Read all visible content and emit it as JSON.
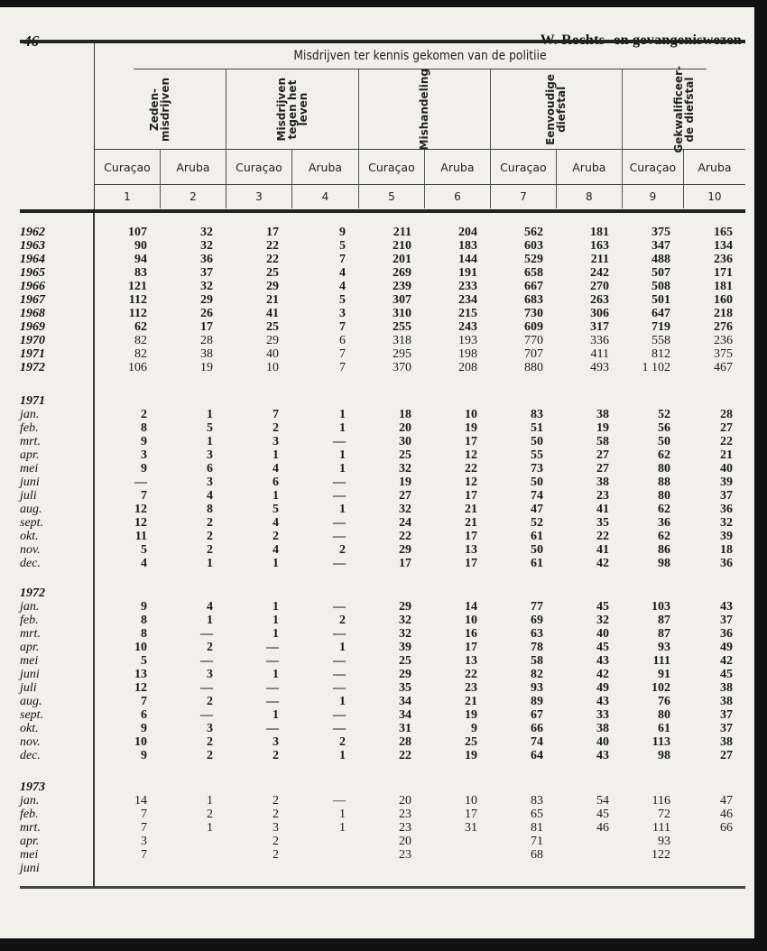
{
  "page": {
    "number": "46",
    "section_title": "W. Rechts- en gevangeniswezen"
  },
  "table": {
    "title": "Misdrijven ter kennis gekomen van de politiie",
    "groups": [
      "Zeden-\nmisdrijven",
      "Misdrijven\ntegen het\nleven",
      "Mishandeling",
      "Eenvoudige\ndiefstal",
      "Gekwalificeer-\nde diefstal"
    ],
    "subcolumns": [
      "Curaçao",
      "Aruba",
      "Curaçao",
      "Aruba",
      "Curaçao",
      "Aruba",
      "Curaçao",
      "Aruba",
      "Curaçao",
      "Aruba"
    ],
    "column_numbers": [
      "1",
      "2",
      "3",
      "4",
      "5",
      "6",
      "7",
      "8",
      "9",
      "10"
    ],
    "sections": [
      {
        "label": "",
        "rows": [
          {
            "label": "1962",
            "values": [
              "107",
              "32",
              "17",
              "9",
              "211",
              "204",
              "562",
              "181",
              "375",
              "165"
            ]
          },
          {
            "label": "1963",
            "values": [
              "90",
              "32",
              "22",
              "5",
              "210",
              "183",
              "603",
              "163",
              "347",
              "134"
            ]
          },
          {
            "label": "1964",
            "values": [
              "94",
              "36",
              "22",
              "7",
              "201",
              "144",
              "529",
              "211",
              "488",
              "236"
            ]
          },
          {
            "label": "1965",
            "values": [
              "83",
              "37",
              "25",
              "4",
              "269",
              "191",
              "658",
              "242",
              "507",
              "171"
            ]
          },
          {
            "label": "1966",
            "values": [
              "121",
              "32",
              "29",
              "4",
              "239",
              "233",
              "667",
              "270",
              "508",
              "181"
            ]
          },
          {
            "label": "1967",
            "values": [
              "112",
              "29",
              "21",
              "5",
              "307",
              "234",
              "683",
              "263",
              "501",
              "160"
            ]
          },
          {
            "label": "1968",
            "values": [
              "112",
              "26",
              "41",
              "3",
              "310",
              "215",
              "730",
              "306",
              "647",
              "218"
            ]
          },
          {
            "label": "1969",
            "values": [
              "62",
              "17",
              "25",
              "7",
              "255",
              "243",
              "609",
              "317",
              "719",
              "276"
            ]
          },
          {
            "label": "1970",
            "values": [
              "82",
              "28",
              "29",
              "6",
              "318",
              "193",
              "770",
              "336",
              "558",
              "236"
            ]
          },
          {
            "label": "1971",
            "values": [
              "82",
              "38",
              "40",
              "7",
              "295",
              "198",
              "707",
              "411",
              "812",
              "375"
            ]
          },
          {
            "label": "1972",
            "values": [
              "106",
              "19",
              "10",
              "7",
              "370",
              "208",
              "880",
              "493",
              "1 102",
              "467"
            ]
          }
        ]
      },
      {
        "label": "1971",
        "rows": [
          {
            "label": "jan.",
            "values": [
              "2",
              "1",
              "7",
              "1",
              "18",
              "10",
              "83",
              "38",
              "52",
              "28"
            ]
          },
          {
            "label": "feb.",
            "values": [
              "8",
              "5",
              "2",
              "1",
              "20",
              "19",
              "51",
              "19",
              "56",
              "27"
            ]
          },
          {
            "label": "mrt.",
            "values": [
              "9",
              "1",
              "3",
              "—",
              "30",
              "17",
              "50",
              "58",
              "50",
              "22"
            ]
          },
          {
            "label": "apr.",
            "values": [
              "3",
              "3",
              "1",
              "1",
              "25",
              "12",
              "55",
              "27",
              "62",
              "21"
            ]
          },
          {
            "label": "mei",
            "values": [
              "9",
              "6",
              "4",
              "1",
              "32",
              "22",
              "73",
              "27",
              "80",
              "40"
            ]
          },
          {
            "label": "juni",
            "values": [
              "—",
              "3",
              "6",
              "—",
              "19",
              "12",
              "50",
              "38",
              "88",
              "39"
            ]
          },
          {
            "label": "juli",
            "values": [
              "7",
              "4",
              "1",
              "—",
              "27",
              "17",
              "74",
              "23",
              "80",
              "37"
            ]
          },
          {
            "label": "aug.",
            "values": [
              "12",
              "8",
              "5",
              "1",
              "32",
              "21",
              "47",
              "41",
              "62",
              "36"
            ]
          },
          {
            "label": "sept.",
            "values": [
              "12",
              "2",
              "4",
              "—",
              "24",
              "21",
              "52",
              "35",
              "36",
              "32"
            ]
          },
          {
            "label": "okt.",
            "values": [
              "11",
              "2",
              "2",
              "—",
              "22",
              "17",
              "61",
              "22",
              "62",
              "39"
            ]
          },
          {
            "label": "nov.",
            "values": [
              "5",
              "2",
              "4",
              "2",
              "29",
              "13",
              "50",
              "41",
              "86",
              "18"
            ]
          },
          {
            "label": "dec.",
            "values": [
              "4",
              "1",
              "1",
              "—",
              "17",
              "17",
              "61",
              "42",
              "98",
              "36"
            ]
          }
        ]
      },
      {
        "label": "1972",
        "rows": [
          {
            "label": "jan.",
            "values": [
              "9",
              "4",
              "1",
              "—",
              "29",
              "14",
              "77",
              "45",
              "103",
              "43"
            ]
          },
          {
            "label": "feb.",
            "values": [
              "8",
              "1",
              "1",
              "2",
              "32",
              "10",
              "69",
              "32",
              "87",
              "37"
            ]
          },
          {
            "label": "mrt.",
            "values": [
              "8",
              "—",
              "1",
              "—",
              "32",
              "16",
              "63",
              "40",
              "87",
              "36"
            ]
          },
          {
            "label": "apr.",
            "values": [
              "10",
              "2",
              "—",
              "1",
              "39",
              "17",
              "78",
              "45",
              "93",
              "49"
            ]
          },
          {
            "label": "mei",
            "values": [
              "5",
              "—",
              "—",
              "—",
              "25",
              "13",
              "58",
              "43",
              "111",
              "42"
            ]
          },
          {
            "label": "juni",
            "values": [
              "13",
              "3",
              "1",
              "—",
              "29",
              "22",
              "82",
              "42",
              "91",
              "45"
            ]
          },
          {
            "label": "juli",
            "values": [
              "12",
              "—",
              "—",
              "—",
              "35",
              "23",
              "93",
              "49",
              "102",
              "38"
            ]
          },
          {
            "label": "aug.",
            "values": [
              "7",
              "2",
              "—",
              "1",
              "34",
              "21",
              "89",
              "43",
              "76",
              "38"
            ]
          },
          {
            "label": "sept.",
            "values": [
              "6",
              "—",
              "1",
              "—",
              "34",
              "19",
              "67",
              "33",
              "80",
              "37"
            ]
          },
          {
            "label": "okt.",
            "values": [
              "9",
              "3",
              "—",
              "—",
              "31",
              "9",
              "66",
              "38",
              "61",
              "37"
            ]
          },
          {
            "label": "nov.",
            "values": [
              "10",
              "2",
              "3",
              "2",
              "28",
              "25",
              "74",
              "40",
              "113",
              "38"
            ]
          },
          {
            "label": "dec.",
            "values": [
              "9",
              "2",
              "2",
              "1",
              "22",
              "19",
              "64",
              "43",
              "98",
              "27"
            ]
          }
        ]
      },
      {
        "label": "1973",
        "rows": [
          {
            "label": "jan.",
            "values": [
              "14",
              "1",
              "2",
              "—",
              "20",
              "10",
              "83",
              "54",
              "116",
              "47"
            ]
          },
          {
            "label": "feb.",
            "values": [
              "7",
              "2",
              "2",
              "1",
              "23",
              "17",
              "65",
              "45",
              "72",
              "46"
            ]
          },
          {
            "label": "mrt.",
            "values": [
              "7",
              "1",
              "3",
              "1",
              "23",
              "31",
              "81",
              "46",
              "111",
              "66"
            ]
          },
          {
            "label": "apr.",
            "values": [
              "3",
              "",
              "2",
              "",
              "20",
              "",
              "71",
              "",
              "93",
              ""
            ]
          },
          {
            "label": "mei",
            "values": [
              "7",
              "",
              "2",
              "",
              "23",
              "",
              "68",
              "",
              "122",
              ""
            ]
          },
          {
            "label": "juni",
            "values": [
              "",
              "",
              "",
              "",
              "",
              "",
              "",
              "",
              "",
              ""
            ]
          }
        ]
      }
    ]
  }
}
